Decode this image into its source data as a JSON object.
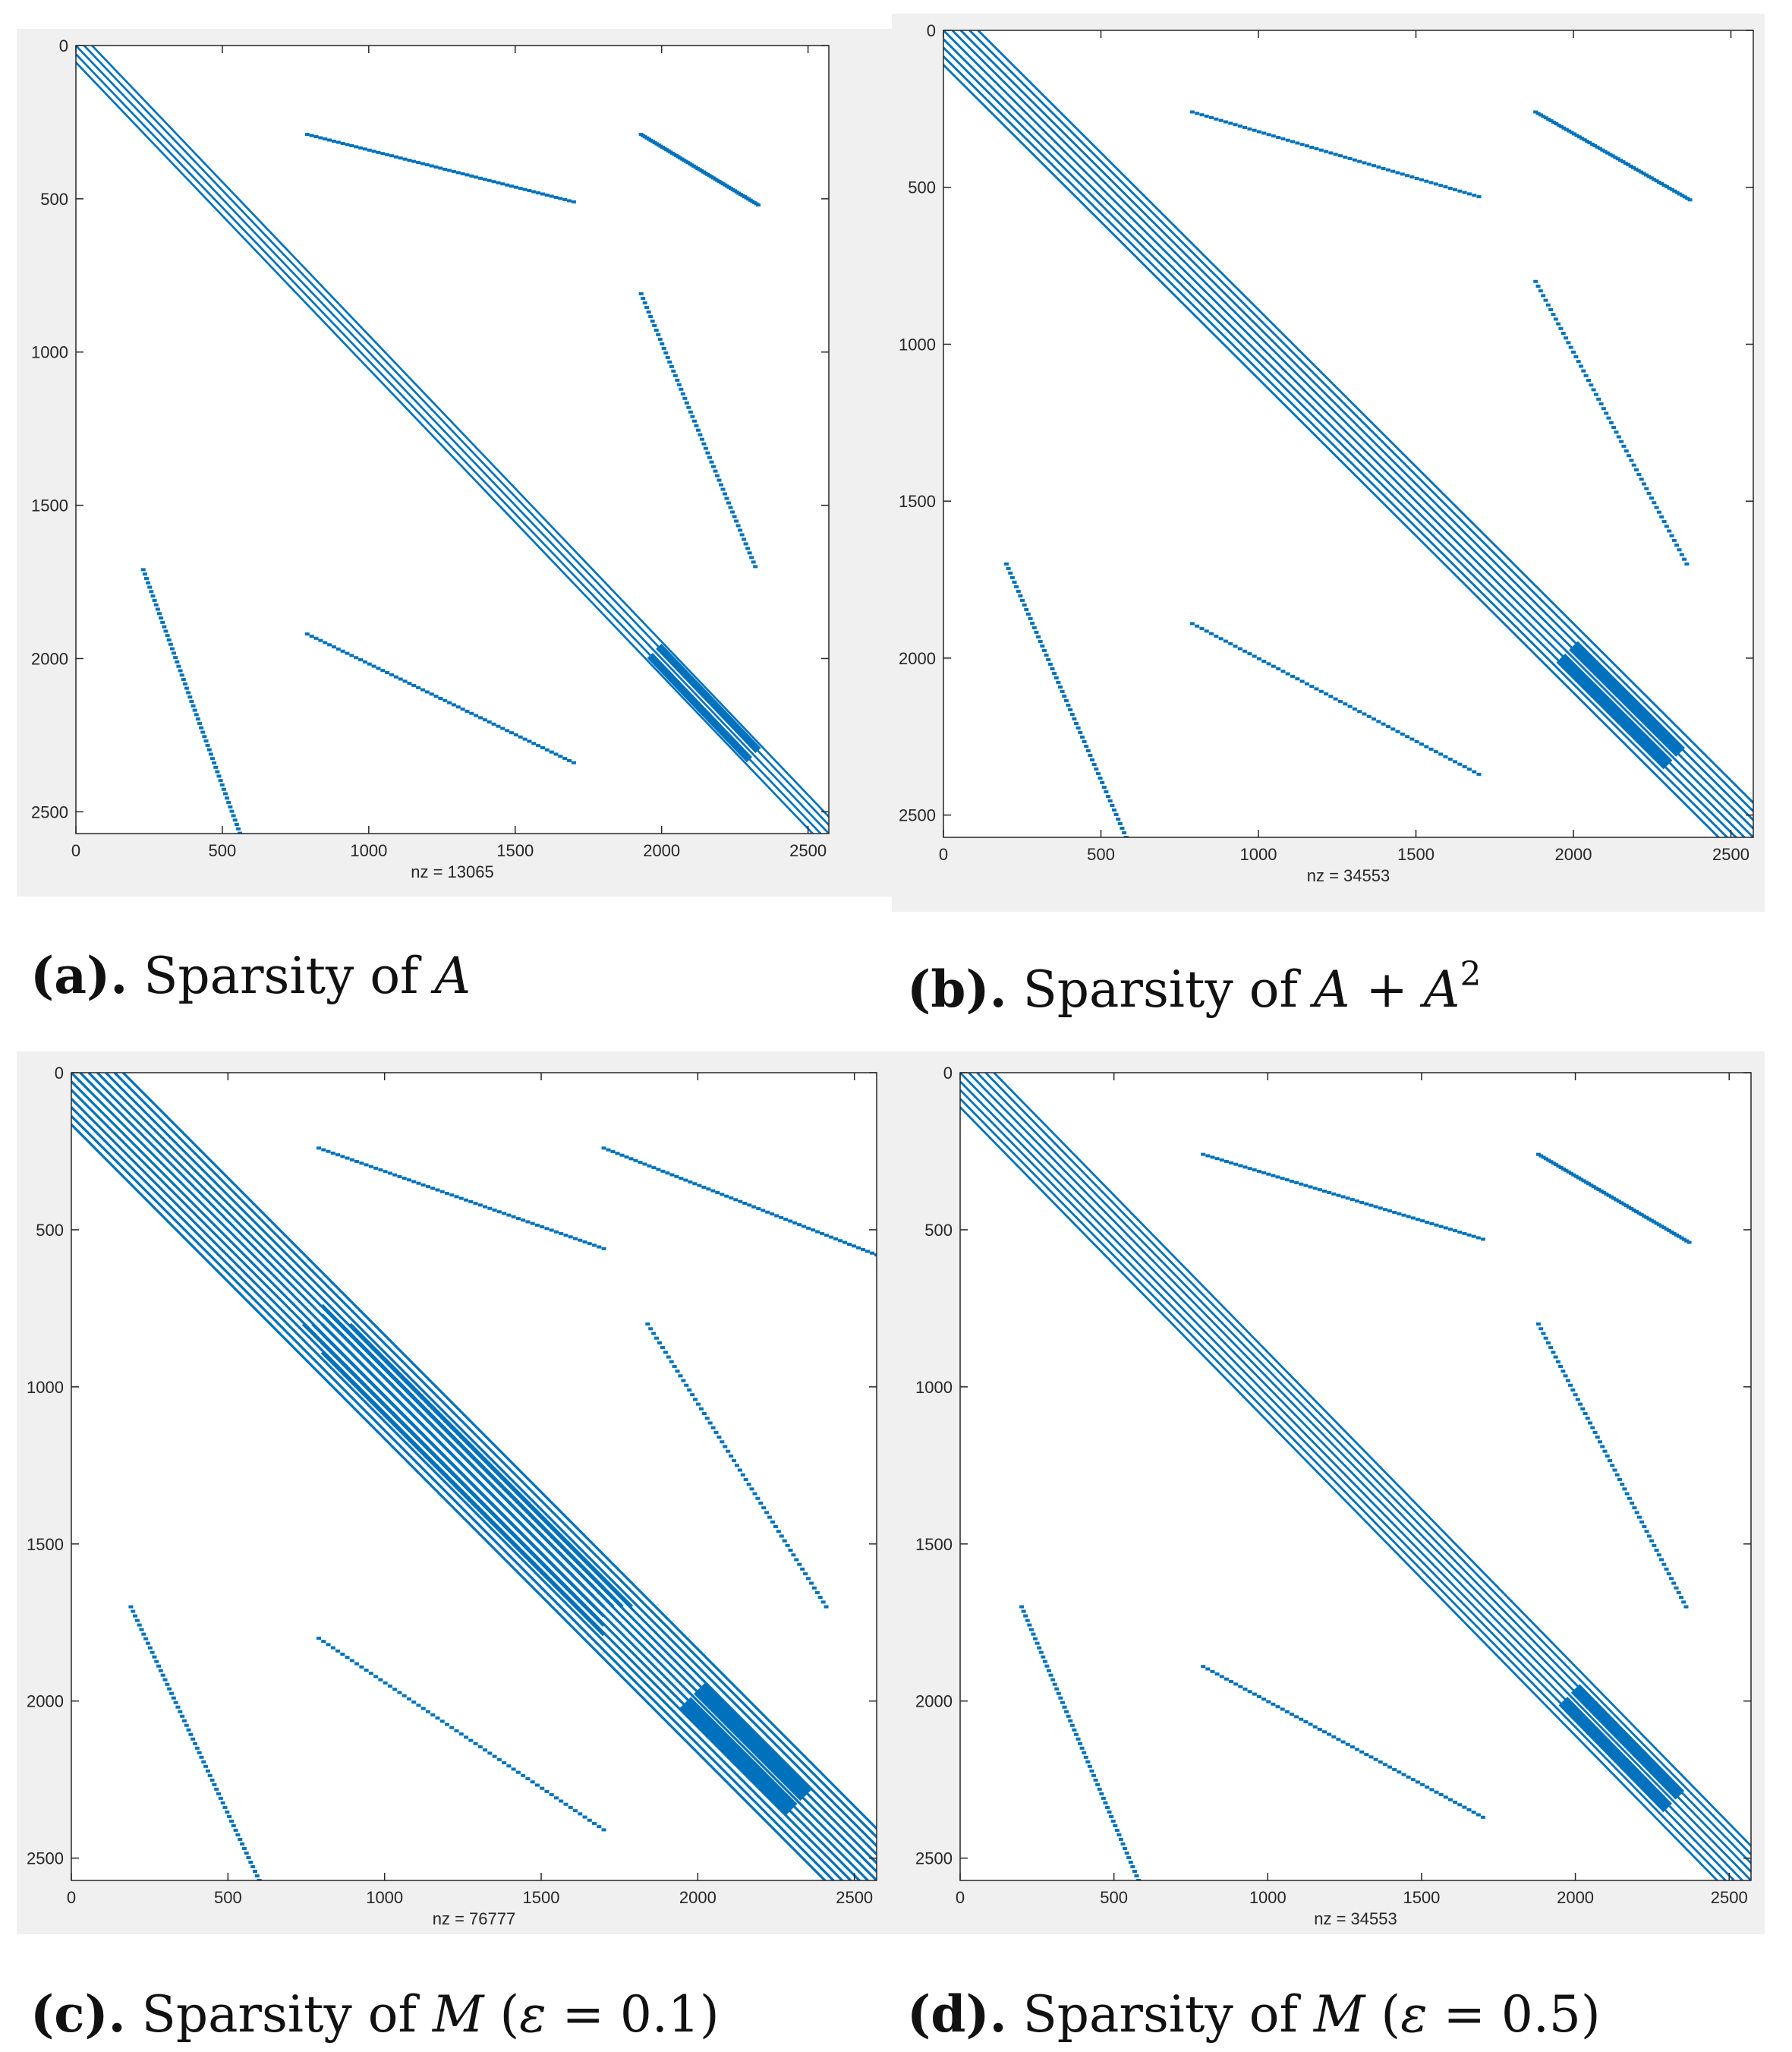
{
  "colors": {
    "accent": "#0072BD",
    "panel_bg": "#F0F0F0",
    "axes_bg": "#FFFFFF"
  },
  "chart_data": [
    {
      "type": "scatter",
      "id": "a",
      "xlim": [
        0,
        2571
      ],
      "ylim": [
        0,
        2571
      ],
      "xticks": [
        "0",
        "500",
        "1000",
        "1500",
        "2000",
        "2500"
      ],
      "yticks": [
        "0",
        "500",
        "1000",
        "1500",
        "2000",
        "2500"
      ],
      "xlabel": "nz = 13065",
      "caption": {
        "label": "(a).",
        "text": "Sparsity of ",
        "math": "A"
      },
      "nz": 13065,
      "bands": [
        {
          "x": [
            0,
            2571
          ],
          "y": [
            0,
            2571
          ],
          "offsets": [
            0,
            28,
            55
          ],
          "width": 7
        },
        {
          "x": [
            1960,
            2300
          ],
          "y": [
            1960,
            2300
          ],
          "offsets": [
            30
          ],
          "width": 26
        }
      ],
      "dotted": [
        {
          "x": [
            790,
            1700
          ],
          "y": [
            290,
            510
          ]
        },
        {
          "x": [
            1930,
            2330
          ],
          "y": [
            290,
            520
          ]
        },
        {
          "x": [
            1930,
            2320
          ],
          "y": [
            810,
            1700
          ]
        },
        {
          "x": [
            230,
            560
          ],
          "y": [
            1710,
            2570
          ]
        },
        {
          "x": [
            790,
            1700
          ],
          "y": [
            1920,
            2340
          ]
        }
      ]
    },
    {
      "type": "scatter",
      "id": "b",
      "xlim": [
        0,
        2571
      ],
      "ylim": [
        0,
        2571
      ],
      "xticks": [
        "0",
        "500",
        "1000",
        "1500",
        "2000",
        "2500"
      ],
      "yticks": [
        "0",
        "500",
        "1000",
        "1500",
        "2000",
        "2500"
      ],
      "xlabel": "nz = 34553",
      "caption": {
        "label": "(b).",
        "text": "Sparsity of ",
        "math": "A",
        "plus": " + ",
        "math2": "A",
        "sup": "2"
      },
      "nz": 34553,
      "bands": [
        {
          "x": [
            0,
            2571
          ],
          "y": [
            0,
            2571
          ],
          "offsets": [
            0,
            28,
            55,
            83,
            110
          ],
          "width": 7
        },
        {
          "x": [
            1960,
            2300
          ],
          "y": [
            1960,
            2300
          ],
          "offsets": [
            40
          ],
          "width": 40
        }
      ],
      "dotted": [
        {
          "x": [
            790,
            1700
          ],
          "y": [
            260,
            530
          ]
        },
        {
          "x": [
            1880,
            2370
          ],
          "y": [
            260,
            540
          ]
        },
        {
          "x": [
            1880,
            2360
          ],
          "y": [
            800,
            1700
          ]
        },
        {
          "x": [
            200,
            580
          ],
          "y": [
            1700,
            2571
          ]
        },
        {
          "x": [
            790,
            1700
          ],
          "y": [
            1890,
            2370
          ]
        }
      ]
    },
    {
      "type": "scatter",
      "id": "c",
      "xlim": [
        0,
        2571
      ],
      "ylim": [
        0,
        2571
      ],
      "xticks": [
        "0",
        "500",
        "1000",
        "1500",
        "2000",
        "2500"
      ],
      "yticks": [
        "0",
        "500",
        "1000",
        "1500",
        "2000",
        "2500"
      ],
      "xlabel": "nz = 76777",
      "caption": {
        "label": "(c).",
        "text": "Sparsity of ",
        "math": "M",
        "paren": " (",
        "eps": "ε",
        "eq": " = 0.1)"
      },
      "nz": 76777,
      "bands": [
        {
          "x": [
            0,
            2571
          ],
          "y": [
            0,
            2571
          ],
          "offsets": [
            0,
            28,
            55,
            83,
            110,
            138,
            165
          ],
          "width": 8
        },
        {
          "x": [
            800,
            1700
          ],
          "y": [
            800,
            1700
          ],
          "offsets": [
            -60,
            -30,
            0,
            30,
            60,
            90
          ],
          "width": 10
        },
        {
          "x": [
            1960,
            2300
          ],
          "y": [
            1960,
            2300
          ],
          "offsets": [
            45
          ],
          "width": 50
        }
      ],
      "dotted": [
        {
          "x": [
            790,
            1700
          ],
          "y": [
            240,
            560
          ]
        },
        {
          "x": [
            1700,
            2571
          ],
          "y": [
            240,
            580
          ]
        },
        {
          "x": [
            1840,
            2410
          ],
          "y": [
            800,
            1700
          ]
        },
        {
          "x": [
            190,
            600
          ],
          "y": [
            1700,
            2571
          ]
        },
        {
          "x": [
            790,
            1700
          ],
          "y": [
            1800,
            2410
          ]
        }
      ]
    },
    {
      "type": "scatter",
      "id": "d",
      "xlim": [
        0,
        2571
      ],
      "ylim": [
        0,
        2571
      ],
      "xticks": [
        "0",
        "500",
        "1000",
        "1500",
        "2000",
        "2500"
      ],
      "yticks": [
        "0",
        "500",
        "1000",
        "1500",
        "2000",
        "2500"
      ],
      "xlabel": "nz = 34553",
      "caption": {
        "label": "(d).",
        "text": "Sparsity of ",
        "math": "M",
        "paren": " (",
        "eps": "ε",
        "eq": " = 0.5)"
      },
      "nz": 34553,
      "bands": [
        {
          "x": [
            0,
            2571
          ],
          "y": [
            0,
            2571
          ],
          "offsets": [
            0,
            28,
            55,
            83,
            110
          ],
          "width": 7
        },
        {
          "x": [
            1960,
            2300
          ],
          "y": [
            1960,
            2300
          ],
          "offsets": [
            40
          ],
          "width": 40
        }
      ],
      "dotted": [
        {
          "x": [
            790,
            1700
          ],
          "y": [
            260,
            530
          ]
        },
        {
          "x": [
            1880,
            2370
          ],
          "y": [
            260,
            540
          ]
        },
        {
          "x": [
            1880,
            2360
          ],
          "y": [
            800,
            1700
          ]
        },
        {
          "x": [
            200,
            580
          ],
          "y": [
            1700,
            2571
          ]
        },
        {
          "x": [
            790,
            1700
          ],
          "y": [
            1890,
            2370
          ]
        }
      ]
    }
  ]
}
